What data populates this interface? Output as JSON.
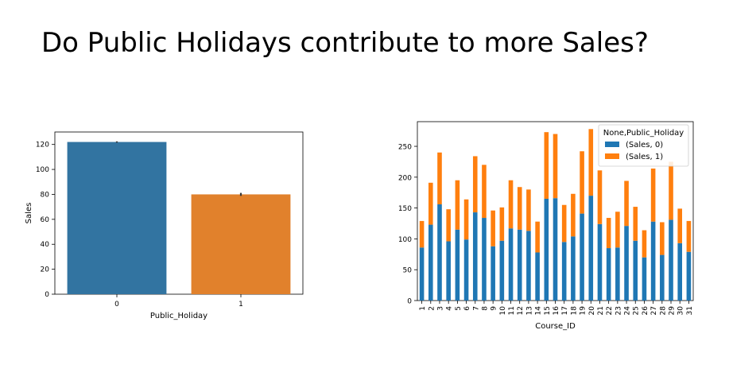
{
  "slide": {
    "title": "Do Public Holidays contribute to more Sales?"
  },
  "chart_data": [
    {
      "type": "bar",
      "categories": [
        "0",
        "1"
      ],
      "values": [
        122,
        80
      ],
      "error": [
        0.5,
        1.2
      ],
      "xlabel": "Public_Holiday",
      "ylabel": "Sales",
      "ylim": [
        0,
        130
      ],
      "yticks": [
        0,
        20,
        40,
        60,
        80,
        100,
        120
      ],
      "colors": [
        "#3274a1",
        "#e1812c"
      ],
      "grid": false
    },
    {
      "type": "bar",
      "stacked": true,
      "categories": [
        "1",
        "2",
        "3",
        "4",
        "5",
        "6",
        "7",
        "8",
        "9",
        "10",
        "11",
        "12",
        "13",
        "14",
        "15",
        "16",
        "17",
        "18",
        "19",
        "20",
        "21",
        "22",
        "23",
        "24",
        "25",
        "26",
        "27",
        "28",
        "29",
        "30",
        "31"
      ],
      "series": [
        {
          "name": "(Sales, 0)",
          "color": "#1f77b4",
          "values": [
            86,
            123,
            156,
            96,
            115,
            99,
            143,
            134,
            88,
            97,
            117,
            115,
            113,
            78,
            165,
            166,
            95,
            104,
            141,
            170,
            124,
            85,
            86,
            121,
            97,
            70,
            128,
            74,
            131,
            93,
            79
          ]
        },
        {
          "name": "(Sales, 1)",
          "color": "#ff7f0e",
          "values": [
            43,
            68,
            84,
            52,
            80,
            65,
            91,
            86,
            58,
            54,
            78,
            69,
            67,
            50,
            108,
            104,
            60,
            69,
            101,
            108,
            87,
            49,
            58,
            73,
            55,
            44,
            86,
            53,
            94,
            56,
            50
          ]
        }
      ],
      "legend": {
        "title": "None,Public_Holiday",
        "position": "top-right"
      },
      "xlabel": "Course_ID",
      "ylabel": "",
      "ylim": [
        0,
        290
      ],
      "yticks": [
        0,
        50,
        100,
        150,
        200,
        250
      ],
      "grid": false
    }
  ]
}
